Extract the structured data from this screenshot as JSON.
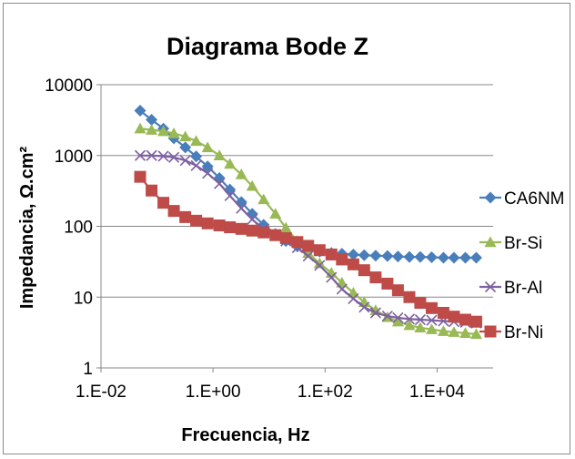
{
  "chart_data": {
    "type": "scatter",
    "title": "Diagrama Bode Z",
    "xlabel": "Frecuencia, Hz",
    "ylabel": "Impedancia, Ω.cm²",
    "x_scale": "log",
    "y_scale": "log",
    "xlim": [
      0.01,
      100000
    ],
    "ylim": [
      1,
      10000
    ],
    "x_ticks": [
      "1.E-02",
      "1.E+00",
      "1.E+02",
      "1.E+04"
    ],
    "y_ticks": [
      "1",
      "10",
      "100",
      "1000",
      "10000"
    ],
    "grid": "horizontal",
    "legend": "right",
    "series": [
      {
        "name": "CA6NM",
        "color": "#4a7ebb",
        "marker": "diamond",
        "points": [
          [
            0.05,
            4300
          ],
          [
            0.08,
            3200
          ],
          [
            0.13,
            2400
          ],
          [
            0.2,
            1750
          ],
          [
            0.32,
            1300
          ],
          [
            0.5,
            970
          ],
          [
            0.8,
            700
          ],
          [
            1.3,
            480
          ],
          [
            2,
            330
          ],
          [
            3.2,
            220
          ],
          [
            5,
            150
          ],
          [
            8,
            105
          ],
          [
            13,
            78
          ],
          [
            20,
            62
          ],
          [
            32,
            52
          ],
          [
            50,
            47
          ],
          [
            80,
            44
          ],
          [
            130,
            42
          ],
          [
            200,
            41
          ],
          [
            320,
            40
          ],
          [
            500,
            39
          ],
          [
            800,
            38.5
          ],
          [
            1300,
            38
          ],
          [
            2000,
            37.5
          ],
          [
            3200,
            37
          ],
          [
            5000,
            37
          ],
          [
            8000,
            36.5
          ],
          [
            13000,
            36
          ],
          [
            20000,
            36
          ],
          [
            32000,
            36
          ],
          [
            50000,
            36
          ]
        ]
      },
      {
        "name": "Br-Si",
        "color": "#98b954",
        "marker": "triangle",
        "points": [
          [
            0.05,
            2400
          ],
          [
            0.08,
            2300
          ],
          [
            0.13,
            2200
          ],
          [
            0.2,
            2050
          ],
          [
            0.32,
            1850
          ],
          [
            0.5,
            1600
          ],
          [
            0.8,
            1300
          ],
          [
            1.3,
            1000
          ],
          [
            2,
            760
          ],
          [
            3.2,
            540
          ],
          [
            5,
            370
          ],
          [
            8,
            240
          ],
          [
            13,
            150
          ],
          [
            20,
            95
          ],
          [
            32,
            62
          ],
          [
            50,
            42
          ],
          [
            80,
            30
          ],
          [
            130,
            22
          ],
          [
            200,
            16
          ],
          [
            320,
            11.5
          ],
          [
            500,
            8.5
          ],
          [
            800,
            6.5
          ],
          [
            1300,
            5.2
          ],
          [
            2000,
            4.5
          ],
          [
            3200,
            4
          ],
          [
            5000,
            3.7
          ],
          [
            8000,
            3.5
          ],
          [
            13000,
            3.3
          ],
          [
            20000,
            3.2
          ],
          [
            32000,
            3.1
          ],
          [
            50000,
            3
          ]
        ]
      },
      {
        "name": "Br-Al",
        "color": "#7d60a0",
        "marker": "x",
        "points": [
          [
            0.05,
            1000
          ],
          [
            0.08,
            1000
          ],
          [
            0.13,
            980
          ],
          [
            0.2,
            940
          ],
          [
            0.32,
            850
          ],
          [
            0.5,
            720
          ],
          [
            0.8,
            560
          ],
          [
            1.3,
            400
          ],
          [
            2,
            270
          ],
          [
            3.2,
            180
          ],
          [
            5,
            125
          ],
          [
            8,
            92
          ],
          [
            13,
            75
          ],
          [
            20,
            62
          ],
          [
            32,
            50
          ],
          [
            50,
            38
          ],
          [
            80,
            28
          ],
          [
            130,
            19
          ],
          [
            200,
            13
          ],
          [
            320,
            9.5
          ],
          [
            500,
            7.2
          ],
          [
            800,
            6
          ],
          [
            1300,
            5.4
          ],
          [
            2000,
            5.1
          ],
          [
            3200,
            4.9
          ],
          [
            5000,
            4.8
          ],
          [
            8000,
            4.7
          ],
          [
            13000,
            4.6
          ],
          [
            20000,
            4.5
          ],
          [
            32000,
            4.4
          ],
          [
            50000,
            4.3
          ]
        ]
      },
      {
        "name": "Br-Ni",
        "color": "#be4b48",
        "marker": "square",
        "points": [
          [
            0.05,
            500
          ],
          [
            0.08,
            320
          ],
          [
            0.13,
            215
          ],
          [
            0.2,
            165
          ],
          [
            0.32,
            135
          ],
          [
            0.5,
            120
          ],
          [
            0.8,
            110
          ],
          [
            1.3,
            103
          ],
          [
            2,
            97
          ],
          [
            3.2,
            92
          ],
          [
            5,
            87
          ],
          [
            8,
            82
          ],
          [
            13,
            75
          ],
          [
            20,
            68
          ],
          [
            32,
            60
          ],
          [
            50,
            53
          ],
          [
            80,
            46
          ],
          [
            130,
            40
          ],
          [
            200,
            34
          ],
          [
            320,
            29
          ],
          [
            500,
            24
          ],
          [
            800,
            19
          ],
          [
            1300,
            15.5
          ],
          [
            2000,
            12.5
          ],
          [
            3200,
            10
          ],
          [
            5000,
            8.3
          ],
          [
            8000,
            7
          ],
          [
            13000,
            6
          ],
          [
            20000,
            5.3
          ],
          [
            32000,
            4.8
          ],
          [
            50000,
            4.5
          ]
        ]
      }
    ]
  }
}
